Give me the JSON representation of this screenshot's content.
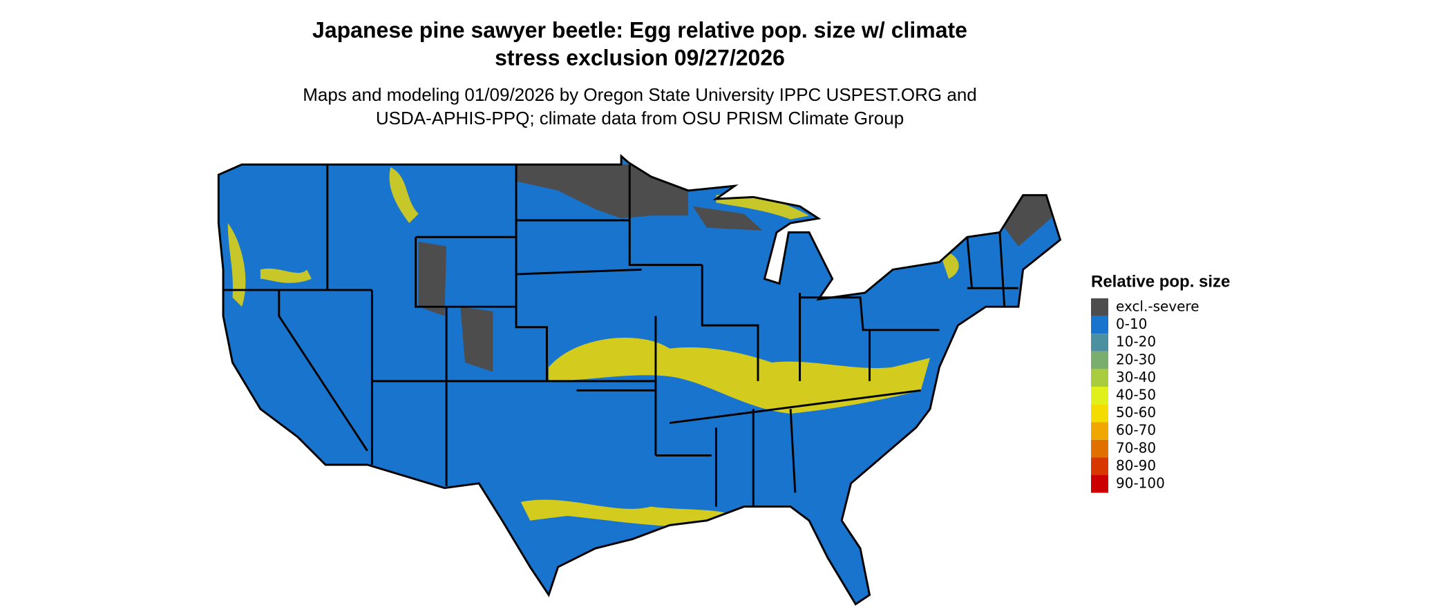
{
  "title": [
    "Japanese pine sawyer beetle: Egg relative pop. size w/ climate",
    "stress exclusion 09/27/2026"
  ],
  "subtitle": [
    "Maps and modeling 01/09/2026 by Oregon State University IPPC USPEST.ORG and",
    "USDA-APHIS-PPQ; climate data from OSU PRISM Climate Group"
  ],
  "legend": {
    "title": "Relative pop. size",
    "items": [
      {
        "label": "excl.-severe",
        "color": "#4d4d4d"
      },
      {
        "label": "0-10",
        "color": "#1874cd"
      },
      {
        "label": "10-20",
        "color": "#4a90a0"
      },
      {
        "label": "20-30",
        "color": "#7aae6e"
      },
      {
        "label": "30-40",
        "color": "#a9cc3f"
      },
      {
        "label": "40-50",
        "color": "#dff01a"
      },
      {
        "label": "50-60",
        "color": "#f5dc00"
      },
      {
        "label": "60-70",
        "color": "#f0a800"
      },
      {
        "label": "70-80",
        "color": "#e07000"
      },
      {
        "label": "80-90",
        "color": "#d83800"
      },
      {
        "label": "90-100",
        "color": "#cc0000"
      }
    ]
  }
}
